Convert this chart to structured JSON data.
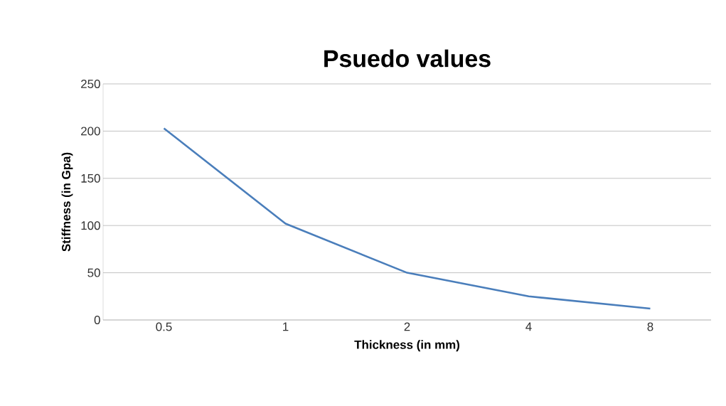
{
  "chart_data": {
    "type": "line",
    "title": "Psuedo values",
    "xlabel": "Thickness (in mm)",
    "ylabel": "Stiffness (in Gpa)",
    "categories": [
      "0.5",
      "1",
      "2",
      "4",
      "8"
    ],
    "series": [
      {
        "color": "#4a7ebb",
        "values": [
          203,
          102,
          50,
          25,
          12
        ]
      }
    ],
    "ylim": [
      0,
      250
    ],
    "yticks": [
      0,
      50,
      100,
      150,
      200,
      250
    ],
    "grid": "y",
    "marker": "none",
    "line_style": "solid"
  }
}
